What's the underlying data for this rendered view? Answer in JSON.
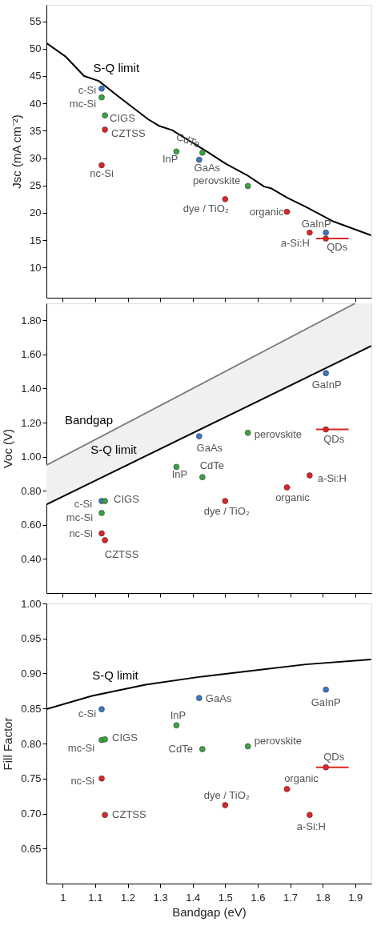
{
  "chart_data": [
    {
      "type": "scatter",
      "ylabel": "Jsc (mA cm⁻²)",
      "xlim": [
        0.95,
        1.95
      ],
      "ylim": [
        4.5,
        58
      ],
      "xticks": [
        1,
        1.1,
        1.2,
        1.3,
        1.4,
        1.5,
        1.6,
        1.7,
        1.8,
        1.9
      ],
      "yticks": [
        10,
        15,
        20,
        25,
        30,
        35,
        40,
        45,
        50,
        55
      ],
      "tick_labels": "y",
      "series": [
        {
          "name": "S-Q limit",
          "type": "line",
          "color": "#000000",
          "line_style": "solid",
          "x": [
            0.95,
            1.008,
            1.066,
            1.111,
            1.173,
            1.263,
            1.296,
            1.337,
            1.386,
            1.444,
            1.501,
            1.567,
            1.62,
            1.641,
            1.69,
            1.748,
            1.83,
            1.949
          ],
          "values": [
            51.0,
            48.6,
            45.0,
            44.1,
            41.2,
            37.1,
            35.9,
            35.1,
            33.3,
            31.2,
            29.0,
            26.9,
            24.8,
            24.5,
            22.8,
            21.1,
            18.5,
            15.9
          ]
        },
        {
          "color": "#3b78c2",
          "marker": "circle",
          "x": [
            1.12,
            1.42,
            1.81
          ],
          "values": [
            42.7,
            29.7,
            16.4
          ]
        },
        {
          "color": "#3aa640",
          "marker": "circle",
          "x": [
            1.12,
            1.13,
            1.35,
            1.43,
            1.57
          ],
          "values": [
            41.1,
            37.8,
            31.2,
            31.0,
            24.9
          ]
        },
        {
          "color": "#e02424",
          "marker": "circle",
          "x": [
            1.13,
            1.12,
            1.5,
            1.69,
            1.76,
            1.81
          ],
          "values": [
            35.2,
            28.7,
            22.5,
            20.2,
            16.4,
            15.3
          ],
          "xerrors": [
            null,
            null,
            null,
            [
              1.69,
              1.7
            ],
            null,
            [
              1.78,
              1.88
            ]
          ]
        }
      ],
      "annotations": [
        {
          "text": "c-Si",
          "x": 1.12,
          "y": 42.7
        },
        {
          "text": "mc-Si",
          "x": 1.12,
          "y": 41.1
        },
        {
          "text": "CIGS",
          "x": 1.13,
          "y": 37.8
        },
        {
          "text": "CZTSS",
          "x": 1.13,
          "y": 35.2
        },
        {
          "text": "nc-Si",
          "x": 1.12,
          "y": 28.7
        },
        {
          "text": "InP",
          "x": 1.35,
          "y": 31.2
        },
        {
          "text": "CdTe",
          "x": 1.43,
          "y": 31.0
        },
        {
          "text": "GaAs",
          "x": 1.42,
          "y": 29.7
        },
        {
          "text": "perovskite",
          "x": 1.57,
          "y": 24.9
        },
        {
          "text": "dye / TiO₂",
          "x": 1.5,
          "y": 22.5
        },
        {
          "text": "organic",
          "x": 1.69,
          "y": 20.2
        },
        {
          "text": "GaInP",
          "x": 1.81,
          "y": 16.4
        },
        {
          "text": "a-Si:H",
          "x": 1.76,
          "y": 16.4
        },
        {
          "text": "QDs",
          "x": 1.81,
          "y": 15.3
        }
      ]
    },
    {
      "type": "scatter",
      "ylabel": "Voc (V)",
      "xlim": [
        0.95,
        1.95
      ],
      "ylim": [
        0.2,
        1.9
      ],
      "xticks": [
        1,
        1.1,
        1.2,
        1.3,
        1.4,
        1.5,
        1.6,
        1.7,
        1.8,
        1.9
      ],
      "yticks": [
        {
          "value": 0.4,
          "label": "0.40"
        },
        {
          "value": 0.6,
          "label": "0.60"
        },
        {
          "value": 0.8,
          "label": "0.80"
        },
        {
          "value": 1.0,
          "label": "1.00"
        },
        {
          "value": 1.2,
          "label": "1.20"
        },
        {
          "value": 1.4,
          "label": "1.40"
        },
        {
          "value": 1.6,
          "label": "1.60"
        },
        {
          "value": 1.8,
          "label": "1.80"
        }
      ],
      "tick_labels": "y",
      "series": [
        {
          "name": "Bandgap",
          "type": "line",
          "color": "#777777",
          "line_style": "solid",
          "x": [
            0.95,
            1.9,
            1.95
          ],
          "values": [
            0.95,
            1.9,
            null
          ],
          "lower": [
            0.72,
            1.604,
            1.65
          ],
          "upper": [
            0.95,
            1.9,
            1.9
          ]
        },
        {
          "name": "S-Q limit",
          "type": "line",
          "color": "#000000",
          "line_style": "solid",
          "x": [
            0.95,
            1.95
          ],
          "values": [
            0.72,
            1.65
          ]
        },
        {
          "color": "#3b78c2",
          "marker": "circle",
          "x": [
            1.12,
            1.42,
            1.81
          ],
          "values": [
            0.74,
            1.12,
            1.49
          ]
        },
        {
          "color": "#3aa640",
          "marker": "circle",
          "x": [
            1.12,
            1.13,
            1.35,
            1.43,
            1.57
          ],
          "values": [
            0.67,
            0.74,
            0.94,
            0.88,
            1.14
          ]
        },
        {
          "color": "#e02424",
          "marker": "circle",
          "x": [
            1.13,
            1.12,
            1.5,
            1.69,
            1.76,
            1.81
          ],
          "values": [
            0.51,
            0.55,
            0.74,
            0.82,
            0.89,
            1.16
          ],
          "xerrors": [
            null,
            null,
            null,
            [
              1.69,
              1.7
            ],
            null,
            [
              1.78,
              1.88
            ]
          ]
        }
      ],
      "annotations": [
        {
          "text": "c-Si",
          "x": 1.12,
          "y": 0.74
        },
        {
          "text": "mc-Si",
          "x": 1.12,
          "y": 0.67
        },
        {
          "text": "CIGS",
          "x": 1.13,
          "y": 0.74
        },
        {
          "text": "CZTSS",
          "x": 1.13,
          "y": 0.51
        },
        {
          "text": "nc-Si",
          "x": 1.12,
          "y": 0.55
        },
        {
          "text": "InP",
          "x": 1.35,
          "y": 0.94
        },
        {
          "text": "CdTe",
          "x": 1.43,
          "y": 0.88
        },
        {
          "text": "GaAs",
          "x": 1.42,
          "y": 1.12
        },
        {
          "text": "perovskite",
          "x": 1.57,
          "y": 1.14
        },
        {
          "text": "dye / TiO₂",
          "x": 1.5,
          "y": 0.74
        },
        {
          "text": "organic",
          "x": 1.69,
          "y": 0.82
        },
        {
          "text": "GaInP",
          "x": 1.81,
          "y": 1.49
        },
        {
          "text": "a-Si:H",
          "x": 1.76,
          "y": 0.89
        },
        {
          "text": "QDs",
          "x": 1.81,
          "y": 1.16
        }
      ]
    },
    {
      "type": "scatter",
      "xlabel": "Bandgap (eV)",
      "ylabel": "Fill Factor",
      "xlim": [
        0.95,
        1.95
      ],
      "ylim": [
        0.6,
        1.0
      ],
      "xticks": [
        1,
        1.1,
        1.2,
        1.3,
        1.4,
        1.5,
        1.6,
        1.7,
        1.8,
        1.9
      ],
      "yticks": [
        0.65,
        {
          "value": 0.7,
          "label": "0.70"
        },
        0.75,
        {
          "value": 0.8,
          "label": "0.80"
        },
        0.85,
        {
          "value": 0.9,
          "label": "0.90"
        },
        0.95,
        {
          "value": 1.0,
          "label": "1.00"
        }
      ],
      "series": [
        {
          "name": "S-Q limit",
          "type": "line",
          "color": "#000000",
          "line_style": "solid",
          "x": [
            0.95,
            1.09,
            1.255,
            1.419,
            1.583,
            1.748,
            1.949
          ],
          "values": [
            0.849,
            0.868,
            0.884,
            0.895,
            0.904,
            0.913,
            0.92
          ]
        },
        {
          "color": "#3b78c2",
          "marker": "circle",
          "x": [
            1.12,
            1.42,
            1.81
          ],
          "values": [
            0.849,
            0.865,
            0.877
          ]
        },
        {
          "color": "#3aa640",
          "marker": "circle",
          "x": [
            1.12,
            1.13,
            1.35,
            1.43,
            1.57
          ],
          "values": [
            0.805,
            0.806,
            0.826,
            0.792,
            0.796
          ]
        },
        {
          "color": "#e02424",
          "marker": "circle",
          "x": [
            1.13,
            1.12,
            1.5,
            1.69,
            1.76,
            1.81
          ],
          "values": [
            0.698,
            0.75,
            0.712,
            0.735,
            0.698,
            0.766
          ],
          "xerrors": [
            null,
            null,
            null,
            [
              1.69,
              1.7
            ],
            null,
            [
              1.78,
              1.88
            ]
          ]
        }
      ],
      "annotations": [
        {
          "text": "c-Si",
          "x": 1.12,
          "y": 0.849
        },
        {
          "text": "mc-Si",
          "x": 1.12,
          "y": 0.805
        },
        {
          "text": "CIGS",
          "x": 1.13,
          "y": 0.806
        },
        {
          "text": "CZTSS",
          "x": 1.13,
          "y": 0.698
        },
        {
          "text": "nc-Si",
          "x": 1.12,
          "y": 0.75
        },
        {
          "text": "InP",
          "x": 1.35,
          "y": 0.826
        },
        {
          "text": "CdTe",
          "x": 1.43,
          "y": 0.792
        },
        {
          "text": "GaAs",
          "x": 1.42,
          "y": 0.865
        },
        {
          "text": "perovskite",
          "x": 1.57,
          "y": 0.796
        },
        {
          "text": "dye / TiO₂",
          "x": 1.5,
          "y": 0.712
        },
        {
          "text": "organic",
          "x": 1.69,
          "y": 0.735
        },
        {
          "text": "GaInP",
          "x": 1.81,
          "y": 0.877
        },
        {
          "text": "a-Si:H",
          "x": 1.76,
          "y": 0.698
        },
        {
          "text": "QDs",
          "x": 1.81,
          "y": 0.766
        }
      ]
    }
  ]
}
